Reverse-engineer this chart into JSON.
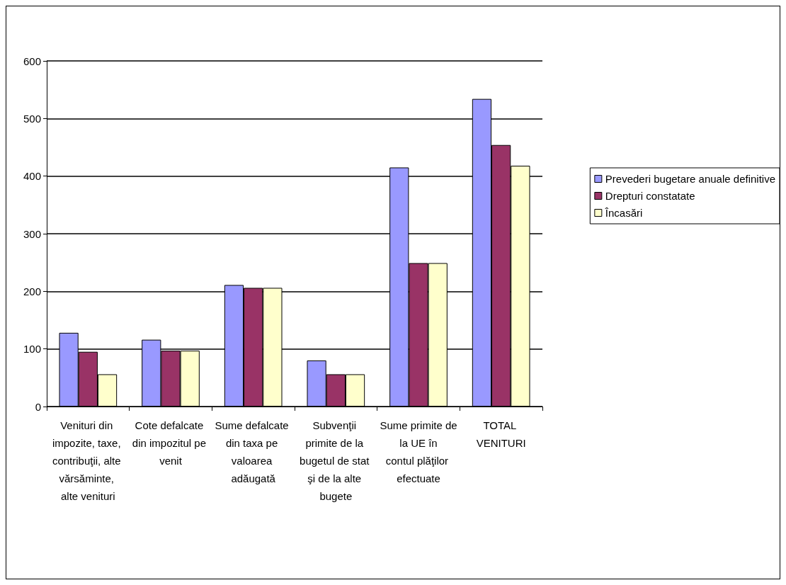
{
  "chart_data": {
    "type": "bar",
    "categories": [
      "Venituri din impozite, taxe, contribuţii, alte vărsăminte, alte venituri",
      "Cote defalcate din impozitul pe venit",
      "Sume defalcate din taxa pe valoarea adăugată",
      "Subvenţii primite de la bugetul de stat şi de la alte bugete",
      "Sume primite de la UE în contul plăţilor efectuate",
      "TOTAL VENITURI"
    ],
    "series": [
      {
        "name": "Prevederi bugetare anuale definitive",
        "color": "#9999ff",
        "values": [
          128,
          116,
          211,
          80,
          415,
          534
        ]
      },
      {
        "name": "Drepturi constatate",
        "color": "#993366",
        "values": [
          95,
          97,
          206,
          56,
          249,
          454
        ]
      },
      {
        "name": "Încasări",
        "color": "#ffffcc",
        "values": [
          56,
          97,
          206,
          56,
          249,
          418
        ]
      }
    ],
    "ylim": [
      0,
      600
    ],
    "yticks": [
      0,
      100,
      200,
      300,
      400,
      500,
      600
    ],
    "grid": "y",
    "legend": "right"
  }
}
